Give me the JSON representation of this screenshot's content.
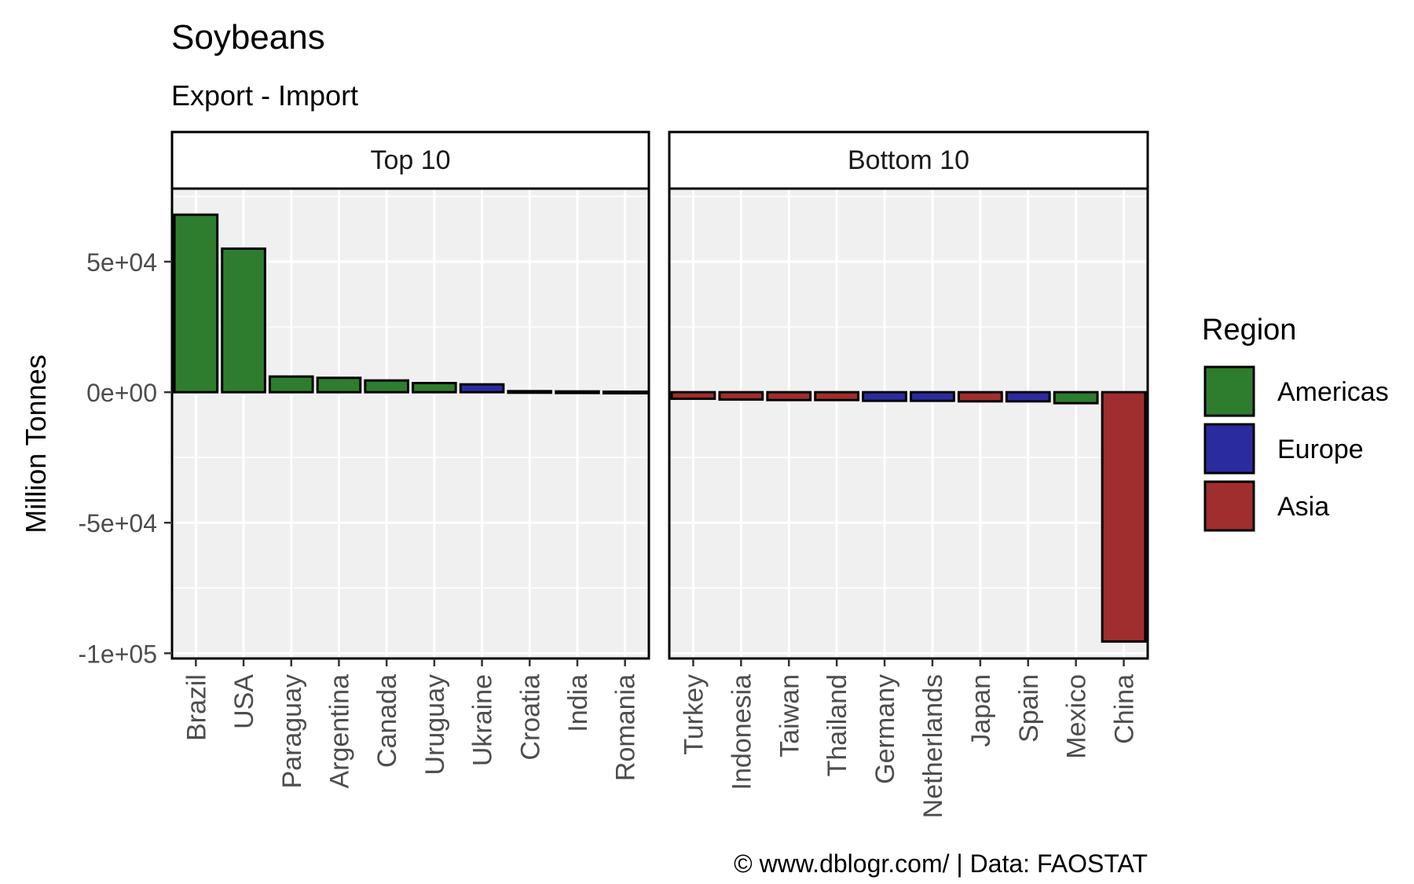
{
  "chart_data": {
    "type": "bar",
    "title": "Soybeans",
    "subtitle": "Export - Import",
    "ylabel": "Million Tonnes",
    "ylim": [
      -102000,
      78000
    ],
    "yticks": [
      {
        "value": 50000,
        "label": "5e+04"
      },
      {
        "value": 0,
        "label": "0e+00"
      },
      {
        "value": -50000,
        "label": "-5e+04"
      },
      {
        "value": -100000,
        "label": "-1e+05"
      }
    ],
    "grid": true,
    "legend": {
      "title": "Region",
      "position": "right",
      "entries": [
        {
          "name": "Americas",
          "color": "#2E7D2E"
        },
        {
          "name": "Europe",
          "color": "#2B2BA0"
        },
        {
          "name": "Asia",
          "color": "#A02E2E"
        }
      ]
    },
    "colors": {
      "Americas": "#2E7D2E",
      "Europe": "#2B2BA0",
      "Asia": "#A02E2E"
    },
    "panels": [
      {
        "label": "Top 10",
        "categories": [
          "Brazil",
          "USA",
          "Paraguay",
          "Argentina",
          "Canada",
          "Uruguay",
          "Ukraine",
          "Croatia",
          "India",
          "Romania"
        ],
        "values": [
          68000,
          55000,
          6000,
          5500,
          4500,
          3500,
          3000,
          400,
          300,
          200
        ],
        "regions": [
          "Americas",
          "Americas",
          "Americas",
          "Americas",
          "Americas",
          "Americas",
          "Europe",
          "Europe",
          "Asia",
          "Europe"
        ]
      },
      {
        "label": "Bottom 10",
        "categories": [
          "Turkey",
          "Indonesia",
          "Taiwan",
          "Thailand",
          "Germany",
          "Netherlands",
          "Japan",
          "Spain",
          "Mexico",
          "China"
        ],
        "values": [
          -2500,
          -2800,
          -3000,
          -3000,
          -3300,
          -3300,
          -3500,
          -3500,
          -4200,
          -95500
        ],
        "regions": [
          "Asia",
          "Asia",
          "Asia",
          "Asia",
          "Europe",
          "Europe",
          "Asia",
          "Europe",
          "Americas",
          "Asia"
        ]
      }
    ],
    "caption": "© www.dblogr.com/  |  Data: FAOSTAT"
  }
}
